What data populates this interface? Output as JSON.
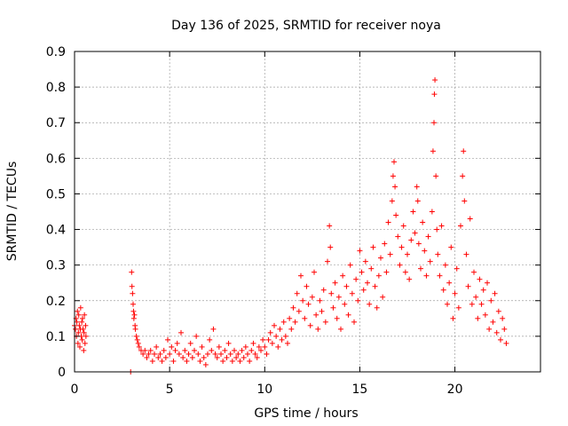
{
  "chart_data": {
    "type": "scatter",
    "title": "Day 136 of 2025, SRMTID for receiver noya",
    "xlabel": "GPS time / hours",
    "ylabel": "SRMTID / TECUs",
    "xlim": [
      0,
      24.5
    ],
    "ylim": [
      0,
      0.9
    ],
    "xticks": [
      0,
      5,
      10,
      15,
      20
    ],
    "xtick_labels": [
      "0",
      "5",
      "10",
      "15",
      "20"
    ],
    "yticks": [
      0,
      0.1,
      0.2,
      0.3,
      0.4,
      0.5,
      0.6,
      0.7,
      0.8,
      0.9
    ],
    "ytick_labels": [
      "0",
      "0.1",
      "0.2",
      "0.3",
      "0.4",
      "0.5",
      "0.6",
      "0.7",
      "0.8",
      "0.9"
    ],
    "grid": true,
    "marker": "+",
    "color": "#ff0000",
    "series": [
      {
        "name": "SRMTID",
        "points": [
          [
            0.0,
            0.13
          ],
          [
            0.05,
            0.12
          ],
          [
            0.08,
            0.15
          ],
          [
            0.1,
            0.1
          ],
          [
            0.12,
            0.14
          ],
          [
            0.15,
            0.17
          ],
          [
            0.18,
            0.08
          ],
          [
            0.2,
            0.11
          ],
          [
            0.22,
            0.16
          ],
          [
            0.25,
            0.13
          ],
          [
            0.28,
            0.07
          ],
          [
            0.3,
            0.12
          ],
          [
            0.32,
            0.18
          ],
          [
            0.35,
            0.1
          ],
          [
            0.38,
            0.14
          ],
          [
            0.4,
            0.09
          ],
          [
            0.42,
            0.15
          ],
          [
            0.45,
            0.12
          ],
          [
            0.48,
            0.06
          ],
          [
            0.5,
            0.11
          ],
          [
            0.52,
            0.16
          ],
          [
            0.55,
            0.08
          ],
          [
            0.58,
            0.13
          ],
          [
            0.6,
            0.1
          ],
          [
            2.95,
            0.0
          ],
          [
            3.0,
            0.28
          ],
          [
            3.02,
            0.24
          ],
          [
            3.05,
            0.22
          ],
          [
            3.08,
            0.19
          ],
          [
            3.1,
            0.17
          ],
          [
            3.12,
            0.15
          ],
          [
            3.15,
            0.16
          ],
          [
            3.18,
            0.13
          ],
          [
            3.2,
            0.12
          ],
          [
            3.25,
            0.1
          ],
          [
            3.3,
            0.09
          ],
          [
            3.35,
            0.08
          ],
          [
            3.4,
            0.07
          ],
          [
            3.5,
            0.06
          ],
          [
            3.6,
            0.05
          ],
          [
            3.7,
            0.06
          ],
          [
            3.8,
            0.04
          ],
          [
            3.9,
            0.05
          ],
          [
            4.0,
            0.06
          ],
          [
            4.1,
            0.03
          ],
          [
            4.2,
            0.05
          ],
          [
            4.3,
            0.07
          ],
          [
            4.4,
            0.04
          ],
          [
            4.5,
            0.05
          ],
          [
            4.6,
            0.03
          ],
          [
            4.7,
            0.06
          ],
          [
            4.8,
            0.04
          ],
          [
            4.9,
            0.09
          ],
          [
            5.0,
            0.05
          ],
          [
            5.1,
            0.07
          ],
          [
            5.2,
            0.03
          ],
          [
            5.3,
            0.06
          ],
          [
            5.4,
            0.08
          ],
          [
            5.5,
            0.05
          ],
          [
            5.6,
            0.11
          ],
          [
            5.7,
            0.04
          ],
          [
            5.8,
            0.06
          ],
          [
            5.9,
            0.03
          ],
          [
            6.0,
            0.05
          ],
          [
            6.1,
            0.08
          ],
          [
            6.2,
            0.04
          ],
          [
            6.3,
            0.06
          ],
          [
            6.4,
            0.1
          ],
          [
            6.5,
            0.05
          ],
          [
            6.6,
            0.03
          ],
          [
            6.7,
            0.07
          ],
          [
            6.8,
            0.04
          ],
          [
            6.9,
            0.02
          ],
          [
            7.0,
            0.05
          ],
          [
            7.1,
            0.09
          ],
          [
            7.2,
            0.06
          ],
          [
            7.3,
            0.12
          ],
          [
            7.4,
            0.05
          ],
          [
            7.5,
            0.04
          ],
          [
            7.6,
            0.07
          ],
          [
            7.7,
            0.05
          ],
          [
            7.8,
            0.03
          ],
          [
            7.9,
            0.06
          ],
          [
            8.0,
            0.04
          ],
          [
            8.1,
            0.08
          ],
          [
            8.2,
            0.05
          ],
          [
            8.3,
            0.03
          ],
          [
            8.4,
            0.06
          ],
          [
            8.5,
            0.04
          ],
          [
            8.6,
            0.05
          ],
          [
            8.7,
            0.03
          ],
          [
            8.8,
            0.06
          ],
          [
            8.9,
            0.04
          ],
          [
            9.0,
            0.07
          ],
          [
            9.1,
            0.05
          ],
          [
            9.2,
            0.03
          ],
          [
            9.3,
            0.06
          ],
          [
            9.4,
            0.08
          ],
          [
            9.5,
            0.05
          ],
          [
            9.6,
            0.04
          ],
          [
            9.7,
            0.07
          ],
          [
            9.8,
            0.06
          ],
          [
            9.9,
            0.09
          ],
          [
            10.0,
            0.07
          ],
          [
            10.1,
            0.05
          ],
          [
            10.2,
            0.09
          ],
          [
            10.3,
            0.11
          ],
          [
            10.4,
            0.08
          ],
          [
            10.5,
            0.13
          ],
          [
            10.6,
            0.1
          ],
          [
            10.7,
            0.07
          ],
          [
            10.8,
            0.12
          ],
          [
            10.9,
            0.09
          ],
          [
            11.0,
            0.14
          ],
          [
            11.1,
            0.1
          ],
          [
            11.2,
            0.08
          ],
          [
            11.3,
            0.15
          ],
          [
            11.4,
            0.12
          ],
          [
            11.5,
            0.18
          ],
          [
            11.6,
            0.14
          ],
          [
            11.7,
            0.22
          ],
          [
            11.8,
            0.17
          ],
          [
            11.9,
            0.27
          ],
          [
            12.0,
            0.2
          ],
          [
            12.1,
            0.15
          ],
          [
            12.2,
            0.24
          ],
          [
            12.3,
            0.19
          ],
          [
            12.4,
            0.13
          ],
          [
            12.5,
            0.21
          ],
          [
            12.6,
            0.28
          ],
          [
            12.7,
            0.16
          ],
          [
            12.8,
            0.12
          ],
          [
            12.9,
            0.2
          ],
          [
            13.0,
            0.17
          ],
          [
            13.1,
            0.23
          ],
          [
            13.2,
            0.14
          ],
          [
            13.3,
            0.31
          ],
          [
            13.4,
            0.41
          ],
          [
            13.45,
            0.35
          ],
          [
            13.5,
            0.22
          ],
          [
            13.6,
            0.18
          ],
          [
            13.7,
            0.25
          ],
          [
            13.8,
            0.15
          ],
          [
            13.9,
            0.21
          ],
          [
            14.0,
            0.12
          ],
          [
            14.1,
            0.27
          ],
          [
            14.2,
            0.19
          ],
          [
            14.3,
            0.24
          ],
          [
            14.4,
            0.16
          ],
          [
            14.5,
            0.3
          ],
          [
            14.6,
            0.22
          ],
          [
            14.7,
            0.14
          ],
          [
            14.8,
            0.26
          ],
          [
            14.9,
            0.2
          ],
          [
            15.0,
            0.34
          ],
          [
            15.1,
            0.28
          ],
          [
            15.2,
            0.23
          ],
          [
            15.3,
            0.31
          ],
          [
            15.4,
            0.25
          ],
          [
            15.5,
            0.19
          ],
          [
            15.6,
            0.29
          ],
          [
            15.7,
            0.35
          ],
          [
            15.8,
            0.24
          ],
          [
            15.9,
            0.18
          ],
          [
            16.0,
            0.27
          ],
          [
            16.1,
            0.32
          ],
          [
            16.2,
            0.21
          ],
          [
            16.3,
            0.36
          ],
          [
            16.4,
            0.28
          ],
          [
            16.5,
            0.42
          ],
          [
            16.6,
            0.33
          ],
          [
            16.7,
            0.48
          ],
          [
            16.75,
            0.55
          ],
          [
            16.8,
            0.59
          ],
          [
            16.85,
            0.52
          ],
          [
            16.9,
            0.44
          ],
          [
            17.0,
            0.38
          ],
          [
            17.1,
            0.3
          ],
          [
            17.2,
            0.35
          ],
          [
            17.3,
            0.41
          ],
          [
            17.4,
            0.28
          ],
          [
            17.5,
            0.33
          ],
          [
            17.6,
            0.26
          ],
          [
            17.7,
            0.37
          ],
          [
            17.8,
            0.45
          ],
          [
            17.9,
            0.39
          ],
          [
            18.0,
            0.52
          ],
          [
            18.05,
            0.48
          ],
          [
            18.1,
            0.36
          ],
          [
            18.2,
            0.29
          ],
          [
            18.3,
            0.42
          ],
          [
            18.4,
            0.34
          ],
          [
            18.5,
            0.27
          ],
          [
            18.6,
            0.38
          ],
          [
            18.7,
            0.31
          ],
          [
            18.8,
            0.45
          ],
          [
            18.85,
            0.62
          ],
          [
            18.9,
            0.7
          ],
          [
            18.92,
            0.78
          ],
          [
            18.95,
            0.82
          ],
          [
            19.0,
            0.55
          ],
          [
            19.05,
            0.4
          ],
          [
            19.1,
            0.33
          ],
          [
            19.2,
            0.27
          ],
          [
            19.3,
            0.41
          ],
          [
            19.4,
            0.23
          ],
          [
            19.5,
            0.3
          ],
          [
            19.6,
            0.19
          ],
          [
            19.7,
            0.25
          ],
          [
            19.8,
            0.35
          ],
          [
            19.9,
            0.15
          ],
          [
            20.0,
            0.22
          ],
          [
            20.1,
            0.29
          ],
          [
            20.2,
            0.18
          ],
          [
            20.3,
            0.41
          ],
          [
            20.4,
            0.55
          ],
          [
            20.45,
            0.62
          ],
          [
            20.5,
            0.48
          ],
          [
            20.6,
            0.33
          ],
          [
            20.7,
            0.24
          ],
          [
            20.8,
            0.43
          ],
          [
            20.9,
            0.19
          ],
          [
            21.0,
            0.28
          ],
          [
            21.1,
            0.21
          ],
          [
            21.2,
            0.15
          ],
          [
            21.3,
            0.26
          ],
          [
            21.4,
            0.19
          ],
          [
            21.5,
            0.23
          ],
          [
            21.6,
            0.16
          ],
          [
            21.7,
            0.25
          ],
          [
            21.8,
            0.12
          ],
          [
            21.9,
            0.2
          ],
          [
            22.0,
            0.14
          ],
          [
            22.1,
            0.22
          ],
          [
            22.2,
            0.11
          ],
          [
            22.3,
            0.17
          ],
          [
            22.4,
            0.09
          ],
          [
            22.5,
            0.15
          ],
          [
            22.6,
            0.12
          ],
          [
            22.7,
            0.08
          ]
        ]
      }
    ]
  }
}
